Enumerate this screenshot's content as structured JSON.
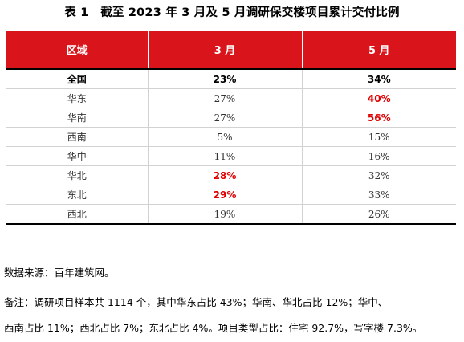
{
  "title": "表 1　截至 2023 年 3 月及 5 月调研保交楼项目累计交付比例",
  "table": {
    "headers": [
      "区域",
      "3 月",
      "5 月"
    ],
    "rows": [
      {
        "region": "全国",
        "mar": "23%",
        "may": "34%",
        "mar_highlight": false,
        "may_highlight": false
      },
      {
        "region": "华东",
        "mar": "27%",
        "may": "40%",
        "mar_highlight": false,
        "may_highlight": true
      },
      {
        "region": "华南",
        "mar": "27%",
        "may": "56%",
        "mar_highlight": false,
        "may_highlight": true
      },
      {
        "region": "西南",
        "mar": "5%",
        "may": "15%",
        "mar_highlight": false,
        "may_highlight": false
      },
      {
        "region": "华中",
        "mar": "11%",
        "may": "16%",
        "mar_highlight": false,
        "may_highlight": false
      },
      {
        "region": "华北",
        "mar": "28%",
        "may": "32%",
        "mar_highlight": true,
        "may_highlight": false
      },
      {
        "region": "东北",
        "mar": "29%",
        "may": "33%",
        "mar_highlight": true,
        "may_highlight": false
      },
      {
        "region": "西北",
        "mar": "19%",
        "may": "26%",
        "mar_highlight": false,
        "may_highlight": false
      }
    ]
  },
  "source": "数据来源：百年建筑网。",
  "note_line1": "备注：调研项目样本共 1114 个，其中华东占比 43%；华南、华北占比 12%；华中、",
  "note_line2": "西南占比 11%；西北占比 7%；东北占比 4%。项目类型占比：住宅 92.7%，写字楼 7.3%。",
  "colors": {
    "header_bg": "#d9141a",
    "header_text": "#ffffff",
    "highlight_text": "#e00000"
  }
}
